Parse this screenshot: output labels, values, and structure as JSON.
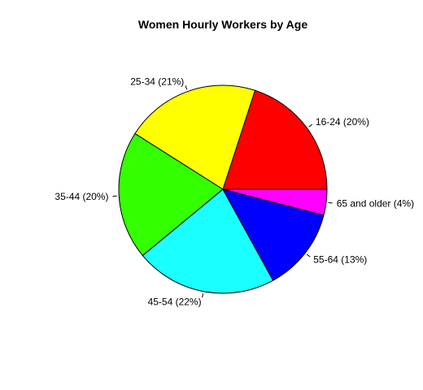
{
  "chart_data": {
    "type": "pie",
    "title": "Women Hourly Workers by Age",
    "slices": [
      {
        "label": "16-24 (20%)",
        "category": "16-24",
        "value": 20,
        "color": "#FF0000"
      },
      {
        "label": "25-34 (21%)",
        "category": "25-34",
        "value": 21,
        "color": "#FFFF00"
      },
      {
        "label": "35-44 (20%)",
        "category": "35-44",
        "value": 20,
        "color": "#33FF00"
      },
      {
        "label": "45-54 (22%)",
        "category": "45-54",
        "value": 22,
        "color": "#1AFFFF"
      },
      {
        "label": "55-64 (13%)",
        "category": "55-64",
        "value": 13,
        "color": "#0000FF"
      },
      {
        "label": "65 and older (4%)",
        "category": "65 and older",
        "value": 4,
        "color": "#FF00FF"
      }
    ],
    "start_direction": "3 o'clock",
    "direction": "counterclockwise",
    "legend": "none",
    "grid": false
  }
}
